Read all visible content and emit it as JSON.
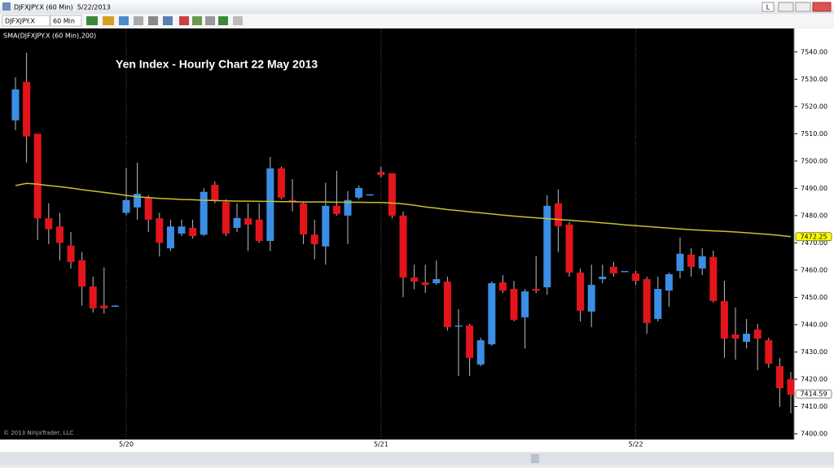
{
  "window": {
    "title": "DJFXJPY.X (60 Min)  5/22/2013",
    "lock_button": "L"
  },
  "toolbar": {
    "instrument": "DJFXJPY.X",
    "interval": "60 Min"
  },
  "chart_data": {
    "type": "candlestick",
    "title": "Yen Index - Hourly Chart 22 May 2013",
    "footer": "© 2013 NinjaTrader, LLC",
    "categories": [
      null,
      null,
      null,
      null,
      null,
      null,
      null,
      null,
      null,
      null,
      "5/20",
      null,
      null,
      null,
      null,
      null,
      null,
      null,
      null,
      null,
      null,
      null,
      null,
      null,
      null,
      null,
      null,
      null,
      null,
      null,
      null,
      null,
      null,
      "5/21",
      null,
      null,
      null,
      null,
      null,
      null,
      null,
      null,
      null,
      null,
      null,
      null,
      null,
      null,
      null,
      null,
      null,
      null,
      null,
      null,
      null,
      null,
      "5/22",
      null,
      null,
      null,
      null,
      null,
      null,
      null,
      null,
      null,
      null,
      null,
      null,
      null,
      null
    ],
    "open": [
      7514.9,
      7529,
      7510,
      7479,
      7476,
      7469,
      7463.6,
      7454,
      7447,
      7447,
      7481,
      7483,
      7486.6,
      7479,
      7468,
      7473.4,
      7475.5,
      7473,
      7491.3,
      7485,
      7475.5,
      7479,
      7478.5,
      7470.7,
      7497.3,
      7485.7,
      7484.5,
      7473,
      7468.7,
      7483.6,
      7480,
      7486.6,
      7487.8,
      7496,
      7495.5,
      7480,
      7457.3,
      7455.5,
      7455.2,
      7455.8,
      7439.7,
      7439.7,
      7425.4,
      7432.8,
      7455.5,
      7453.1,
      7442.7,
      7453.1,
      7453.7,
      7484.5,
      7476.7,
      7459.1,
      7444.8,
      7456.7,
      7461.2,
      7459.7,
      7458.8,
      7456.7,
      7442.1,
      7452.5,
      7459.7,
      7465.7,
      7460.6,
      7464.8,
      7448.7,
      7436.4,
      7433.7,
      7438.2,
      7434.3,
      7424.8,
      7420
    ],
    "high": [
      7530.7,
      7539.7,
      7510,
      7484.5,
      7481,
      7474,
      7466.6,
      7457.6,
      7461,
      7447.2,
      7497.3,
      7499.4,
      7487.5,
      7481,
      7478.5,
      7478.5,
      7478.5,
      7490,
      7492.5,
      7486,
      7484.5,
      7484.5,
      7484.5,
      7501.5,
      7498,
      7493.4,
      7485,
      7478.5,
      7492,
      7496.4,
      7489,
      7491,
      7487.8,
      7497.9,
      7495.5,
      7481.5,
      7462,
      7462,
      7463.6,
      7457.6,
      7445.7,
      7440.3,
      7435.2,
      7455.8,
      7458.2,
      7456.1,
      7453.1,
      7465.1,
      7487.5,
      7489.6,
      7477.6,
      7460.6,
      7462,
      7462,
      7463,
      7459.7,
      7459.7,
      7457.6,
      7457.6,
      7459.1,
      7471.9,
      7468,
      7468,
      7467.2,
      7456.1,
      7446.3,
      7442.1,
      7440.3,
      7435.2,
      7427.8,
      7422.7
    ],
    "low": [
      7511.3,
      7499.4,
      7471,
      7469.5,
      7463.6,
      7460.6,
      7447,
      7444.5,
      7444,
      7446.8,
      7480,
      7478.5,
      7474,
      7465,
      7467,
      7472.5,
      7471.6,
      7472.5,
      7484.5,
      7472.5,
      7474,
      7467,
      7470,
      7467,
      7486,
      7481.5,
      7469.5,
      7464,
      7462,
      7480,
      7469.5,
      7486,
      7487.8,
      7494,
      7479,
      7450.1,
      7453,
      7451.6,
      7454.6,
      7437.9,
      7421.2,
      7421.2,
      7424.8,
      7432.2,
      7451.6,
      7441.2,
      7431.3,
      7451.6,
      7451,
      7466.6,
      7457.6,
      7441.2,
      7439.1,
      7455.2,
      7457.6,
      7459.7,
      7454.6,
      7436.7,
      7441.2,
      7446.6,
      7457,
      7457.6,
      7458.2,
      7448.1,
      7427.8,
      7427.2,
      7431.3,
      7423.3,
      7424.2,
      7409.9,
      7407.5
    ],
    "close": [
      7526.3,
      7509,
      7479,
      7475,
      7470,
      7463,
      7454,
      7446,
      7446,
      7447,
      7485.7,
      7488,
      7478.5,
      7470,
      7476,
      7476,
      7472.5,
      7488.7,
      7485.4,
      7473.4,
      7479.1,
      7476.7,
      7470.7,
      7497.3,
      7486.6,
      7485,
      7473.1,
      7469.5,
      7483.6,
      7480.6,
      7485.7,
      7490.1,
      7487.8,
      7494.9,
      7480,
      7457.3,
      7455.8,
      7454.6,
      7456.7,
      7439.1,
      7439.7,
      7427.8,
      7434.3,
      7455.2,
      7452.5,
      7441.8,
      7452.2,
      7452.5,
      7483.6,
      7476.1,
      7459.1,
      7445.1,
      7454.6,
      7457.6,
      7458.8,
      7459.7,
      7456.1,
      7440.6,
      7453.1,
      7458.5,
      7466,
      7461.2,
      7465.1,
      7448.7,
      7434.9,
      7434.9,
      7436.7,
      7434.9,
      7425.7,
      7416.7,
      7414.3
    ],
    "up_color": "#3a8ee6",
    "down_color": "#e3141b",
    "series": [
      {
        "name": "SMA(DJFXJPY.X (60 Min),200)",
        "color": "#c8c030",
        "values": [
          7491,
          7491.8,
          7491.5,
          7491,
          7490.6,
          7490.1,
          7489.5,
          7489,
          7488.5,
          7488,
          7487.4,
          7486.9,
          7486.6,
          7486.3,
          7486.1,
          7485.9,
          7485.8,
          7485.6,
          7485.5,
          7485.4,
          7485.3,
          7485.3,
          7485.2,
          7485.2,
          7485.1,
          7485.1,
          7485,
          7485,
          7485,
          7484.9,
          7484.9,
          7484.9,
          7484.8,
          7484.8,
          7484.6,
          7484.3,
          7483.8,
          7483.2,
          7482.7,
          7482.2,
          7481.8,
          7481.4,
          7481,
          7480.6,
          7480.2,
          7479.8,
          7479.5,
          7479.2,
          7478.9,
          7478.6,
          7478.3,
          7478,
          7477.7,
          7477.3,
          7477,
          7476.6,
          7476.3,
          7476,
          7475.7,
          7475.4,
          7475.1,
          7474.8,
          7474.6,
          7474.4,
          7474.2,
          7474,
          7473.7,
          7473.4,
          7473.1,
          7472.7,
          7472.3
        ]
      }
    ],
    "price_markers": [
      {
        "value": 7472.25,
        "color": "#ffff00"
      },
      {
        "value": 7414.59,
        "color": "#ffffff"
      }
    ],
    "ylim": [
      7397.9,
      7548
    ],
    "yticks": [
      {
        "value": 7400,
        "label": "7400.00"
      },
      {
        "value": 7410,
        "label": "7410.00"
      },
      {
        "value": 7420,
        "label": "7420.00"
      },
      {
        "value": 7430,
        "label": "7430.00"
      },
      {
        "value": 7440,
        "label": "7440.00"
      },
      {
        "value": 7450,
        "label": "7450.00"
      },
      {
        "value": 7460,
        "label": "7460.00"
      },
      {
        "value": 7470,
        "label": "7470.00"
      },
      {
        "value": 7480,
        "label": "7480.00"
      },
      {
        "value": 7490,
        "label": "7490.00"
      },
      {
        "value": 7500,
        "label": "7500.00"
      },
      {
        "value": 7510,
        "label": "7510.00"
      },
      {
        "value": 7520,
        "label": "7520.00"
      },
      {
        "value": 7530,
        "label": "7530.00"
      },
      {
        "value": 7540,
        "label": "7540.00"
      }
    ],
    "grid": true
  }
}
